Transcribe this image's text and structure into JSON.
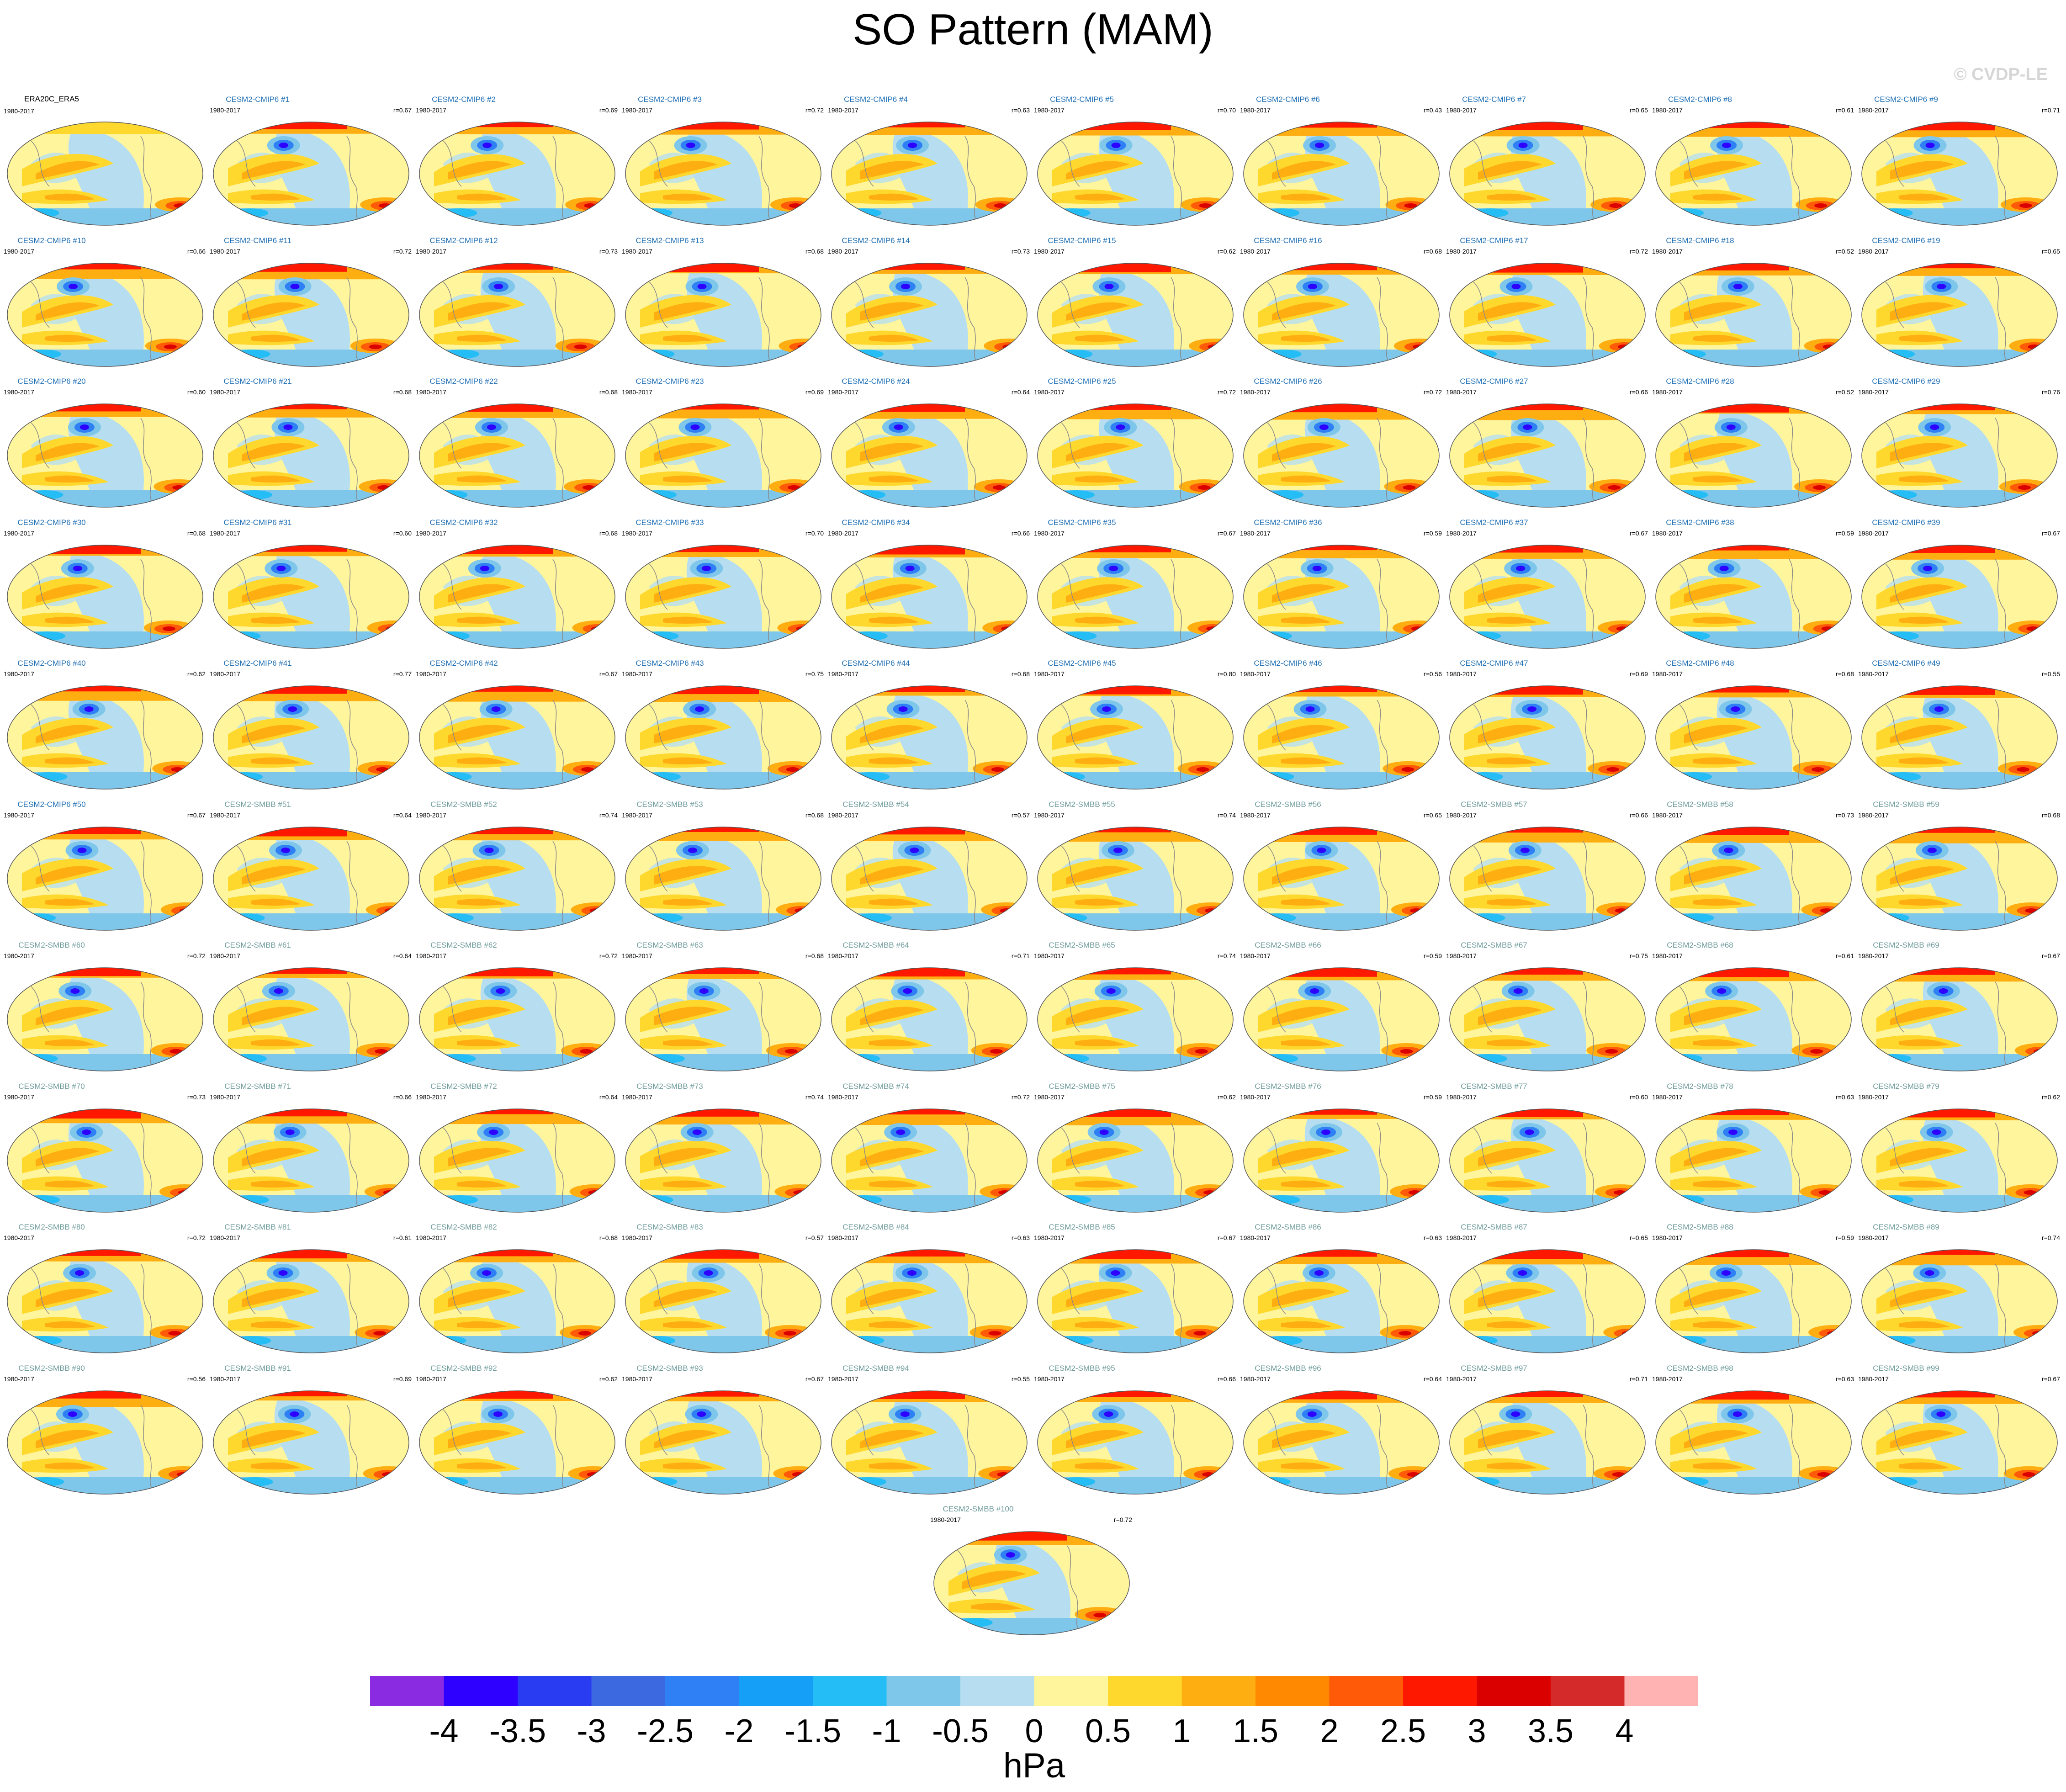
{
  "title": "SO Pattern (MAM)",
  "watermark": "© CVDP-LE",
  "chart_data": {
    "type": "heatmap",
    "description": "Global maps of sea level pressure pattern regressions, one per ensemble member",
    "panels": [
      {
        "title": "ERA20C_ERA5",
        "years": "1980-2017",
        "r": ""
      },
      {
        "title": "CESM2-CMIP6 #1",
        "years": "1980-2017",
        "r": "r=0.67"
      },
      {
        "title": "CESM2-CMIP6 #2",
        "years": "1980-2017",
        "r": "r=0.69"
      },
      {
        "title": "CESM2-CMIP6 #3",
        "years": "1980-2017",
        "r": "r=0.72"
      },
      {
        "title": "CESM2-CMIP6 #4",
        "years": "1980-2017",
        "r": "r=0.63"
      },
      {
        "title": "CESM2-CMIP6 #5",
        "years": "1980-2017",
        "r": "r=0.70"
      },
      {
        "title": "CESM2-CMIP6 #6",
        "years": "1980-2017",
        "r": "r=0.43"
      },
      {
        "title": "CESM2-CMIP6 #7",
        "years": "1980-2017",
        "r": "r=0.65"
      },
      {
        "title": "CESM2-CMIP6 #8",
        "years": "1980-2017",
        "r": "r=0.61"
      },
      {
        "title": "CESM2-CMIP6 #9",
        "years": "1980-2017",
        "r": "r=0.71"
      },
      {
        "title": "CESM2-CMIP6 #10",
        "years": "1980-2017",
        "r": "r=0.66"
      },
      {
        "title": "CESM2-CMIP6 #11",
        "years": "1980-2017",
        "r": "r=0.72"
      },
      {
        "title": "CESM2-CMIP6 #12",
        "years": "1980-2017",
        "r": "r=0.73"
      },
      {
        "title": "CESM2-CMIP6 #13",
        "years": "1980-2017",
        "r": "r=0.68"
      },
      {
        "title": "CESM2-CMIP6 #14",
        "years": "1980-2017",
        "r": "r=0.73"
      },
      {
        "title": "CESM2-CMIP6 #15",
        "years": "1980-2017",
        "r": "r=0.62"
      },
      {
        "title": "CESM2-CMIP6 #16",
        "years": "1980-2017",
        "r": "r=0.68"
      },
      {
        "title": "CESM2-CMIP6 #17",
        "years": "1980-2017",
        "r": "r=0.72"
      },
      {
        "title": "CESM2-CMIP6 #18",
        "years": "1980-2017",
        "r": "r=0.52"
      },
      {
        "title": "CESM2-CMIP6 #19",
        "years": "1980-2017",
        "r": "r=0.65"
      },
      {
        "title": "CESM2-CMIP6 #20",
        "years": "1980-2017",
        "r": "r=0.60"
      },
      {
        "title": "CESM2-CMIP6 #21",
        "years": "1980-2017",
        "r": "r=0.68"
      },
      {
        "title": "CESM2-CMIP6 #22",
        "years": "1980-2017",
        "r": "r=0.68"
      },
      {
        "title": "CESM2-CMIP6 #23",
        "years": "1980-2017",
        "r": "r=0.69"
      },
      {
        "title": "CESM2-CMIP6 #24",
        "years": "1980-2017",
        "r": "r=0.64"
      },
      {
        "title": "CESM2-CMIP6 #25",
        "years": "1980-2017",
        "r": "r=0.72"
      },
      {
        "title": "CESM2-CMIP6 #26",
        "years": "1980-2017",
        "r": "r=0.72"
      },
      {
        "title": "CESM2-CMIP6 #27",
        "years": "1980-2017",
        "r": "r=0.66"
      },
      {
        "title": "CESM2-CMIP6 #28",
        "years": "1980-2017",
        "r": "r=0.52"
      },
      {
        "title": "CESM2-CMIP6 #29",
        "years": "1980-2017",
        "r": "r=0.76"
      },
      {
        "title": "CESM2-CMIP6 #30",
        "years": "1980-2017",
        "r": "r=0.68"
      },
      {
        "title": "CESM2-CMIP6 #31",
        "years": "1980-2017",
        "r": "r=0.60"
      },
      {
        "title": "CESM2-CMIP6 #32",
        "years": "1980-2017",
        "r": "r=0.68"
      },
      {
        "title": "CESM2-CMIP6 #33",
        "years": "1980-2017",
        "r": "r=0.70"
      },
      {
        "title": "CESM2-CMIP6 #34",
        "years": "1980-2017",
        "r": "r=0.66"
      },
      {
        "title": "CESM2-CMIP6 #35",
        "years": "1980-2017",
        "r": "r=0.67"
      },
      {
        "title": "CESM2-CMIP6 #36",
        "years": "1980-2017",
        "r": "r=0.59"
      },
      {
        "title": "CESM2-CMIP6 #37",
        "years": "1980-2017",
        "r": "r=0.67"
      },
      {
        "title": "CESM2-CMIP6 #38",
        "years": "1980-2017",
        "r": "r=0.59"
      },
      {
        "title": "CESM2-CMIP6 #39",
        "years": "1980-2017",
        "r": "r=0.67"
      },
      {
        "title": "CESM2-CMIP6 #40",
        "years": "1980-2017",
        "r": "r=0.62"
      },
      {
        "title": "CESM2-CMIP6 #41",
        "years": "1980-2017",
        "r": "r=0.77"
      },
      {
        "title": "CESM2-CMIP6 #42",
        "years": "1980-2017",
        "r": "r=0.67"
      },
      {
        "title": "CESM2-CMIP6 #43",
        "years": "1980-2017",
        "r": "r=0.75"
      },
      {
        "title": "CESM2-CMIP6 #44",
        "years": "1980-2017",
        "r": "r=0.68"
      },
      {
        "title": "CESM2-CMIP6 #45",
        "years": "1980-2017",
        "r": "r=0.80"
      },
      {
        "title": "CESM2-CMIP6 #46",
        "years": "1980-2017",
        "r": "r=0.56"
      },
      {
        "title": "CESM2-CMIP6 #47",
        "years": "1980-2017",
        "r": "r=0.69"
      },
      {
        "title": "CESM2-CMIP6 #48",
        "years": "1980-2017",
        "r": "r=0.68"
      },
      {
        "title": "CESM2-CMIP6 #49",
        "years": "1980-2017",
        "r": "r=0.55"
      },
      {
        "title": "CESM2-CMIP6 #50",
        "years": "1980-2017",
        "r": "r=0.67"
      },
      {
        "title": "CESM2-SMBB #51",
        "years": "1980-2017",
        "r": "r=0.64"
      },
      {
        "title": "CESM2-SMBB #52",
        "years": "1980-2017",
        "r": "r=0.74"
      },
      {
        "title": "CESM2-SMBB #53",
        "years": "1980-2017",
        "r": "r=0.68"
      },
      {
        "title": "CESM2-SMBB #54",
        "years": "1980-2017",
        "r": "r=0.57"
      },
      {
        "title": "CESM2-SMBB #55",
        "years": "1980-2017",
        "r": "r=0.74"
      },
      {
        "title": "CESM2-SMBB #56",
        "years": "1980-2017",
        "r": "r=0.65"
      },
      {
        "title": "CESM2-SMBB #57",
        "years": "1980-2017",
        "r": "r=0.66"
      },
      {
        "title": "CESM2-SMBB #58",
        "years": "1980-2017",
        "r": "r=0.73"
      },
      {
        "title": "CESM2-SMBB #59",
        "years": "1980-2017",
        "r": "r=0.68"
      },
      {
        "title": "CESM2-SMBB #60",
        "years": "1980-2017",
        "r": "r=0.72"
      },
      {
        "title": "CESM2-SMBB #61",
        "years": "1980-2017",
        "r": "r=0.64"
      },
      {
        "title": "CESM2-SMBB #62",
        "years": "1980-2017",
        "r": "r=0.72"
      },
      {
        "title": "CESM2-SMBB #63",
        "years": "1980-2017",
        "r": "r=0.68"
      },
      {
        "title": "CESM2-SMBB #64",
        "years": "1980-2017",
        "r": "r=0.71"
      },
      {
        "title": "CESM2-SMBB #65",
        "years": "1980-2017",
        "r": "r=0.74"
      },
      {
        "title": "CESM2-SMBB #66",
        "years": "1980-2017",
        "r": "r=0.59"
      },
      {
        "title": "CESM2-SMBB #67",
        "years": "1980-2017",
        "r": "r=0.75"
      },
      {
        "title": "CESM2-SMBB #68",
        "years": "1980-2017",
        "r": "r=0.61"
      },
      {
        "title": "CESM2-SMBB #69",
        "years": "1980-2017",
        "r": "r=0.67"
      },
      {
        "title": "CESM2-SMBB #70",
        "years": "1980-2017",
        "r": "r=0.73"
      },
      {
        "title": "CESM2-SMBB #71",
        "years": "1980-2017",
        "r": "r=0.66"
      },
      {
        "title": "CESM2-SMBB #72",
        "years": "1980-2017",
        "r": "r=0.64"
      },
      {
        "title": "CESM2-SMBB #73",
        "years": "1980-2017",
        "r": "r=0.74"
      },
      {
        "title": "CESM2-SMBB #74",
        "years": "1980-2017",
        "r": "r=0.72"
      },
      {
        "title": "CESM2-SMBB #75",
        "years": "1980-2017",
        "r": "r=0.62"
      },
      {
        "title": "CESM2-SMBB #76",
        "years": "1980-2017",
        "r": "r=0.59"
      },
      {
        "title": "CESM2-SMBB #77",
        "years": "1980-2017",
        "r": "r=0.60"
      },
      {
        "title": "CESM2-SMBB #78",
        "years": "1980-2017",
        "r": "r=0.63"
      },
      {
        "title": "CESM2-SMBB #79",
        "years": "1980-2017",
        "r": "r=0.62"
      },
      {
        "title": "CESM2-SMBB #80",
        "years": "1980-2017",
        "r": "r=0.72"
      },
      {
        "title": "CESM2-SMBB #81",
        "years": "1980-2017",
        "r": "r=0.61"
      },
      {
        "title": "CESM2-SMBB #82",
        "years": "1980-2017",
        "r": "r=0.68"
      },
      {
        "title": "CESM2-SMBB #83",
        "years": "1980-2017",
        "r": "r=0.57"
      },
      {
        "title": "CESM2-SMBB #84",
        "years": "1980-2017",
        "r": "r=0.63"
      },
      {
        "title": "CESM2-SMBB #85",
        "years": "1980-2017",
        "r": "r=0.67"
      },
      {
        "title": "CESM2-SMBB #86",
        "years": "1980-2017",
        "r": "r=0.63"
      },
      {
        "title": "CESM2-SMBB #87",
        "years": "1980-2017",
        "r": "r=0.65"
      },
      {
        "title": "CESM2-SMBB #88",
        "years": "1980-2017",
        "r": "r=0.59"
      },
      {
        "title": "CESM2-SMBB #89",
        "years": "1980-2017",
        "r": "r=0.74"
      },
      {
        "title": "CESM2-SMBB #90",
        "years": "1980-2017",
        "r": "r=0.56"
      },
      {
        "title": "CESM2-SMBB #91",
        "years": "1980-2017",
        "r": "r=0.69"
      },
      {
        "title": "CESM2-SMBB #92",
        "years": "1980-2017",
        "r": "r=0.62"
      },
      {
        "title": "CESM2-SMBB #93",
        "years": "1980-2017",
        "r": "r=0.67"
      },
      {
        "title": "CESM2-SMBB #94",
        "years": "1980-2017",
        "r": "r=0.55"
      },
      {
        "title": "CESM2-SMBB #95",
        "years": "1980-2017",
        "r": "r=0.66"
      },
      {
        "title": "CESM2-SMBB #96",
        "years": "1980-2017",
        "r": "r=0.64"
      },
      {
        "title": "CESM2-SMBB #97",
        "years": "1980-2017",
        "r": "r=0.71"
      },
      {
        "title": "CESM2-SMBB #98",
        "years": "1980-2017",
        "r": "r=0.63"
      },
      {
        "title": "CESM2-SMBB #99",
        "years": "1980-2017",
        "r": "r=0.67"
      },
      {
        "title": "CESM2-SMBB #100",
        "years": "1980-2017",
        "r": "r=0.72"
      }
    ],
    "colorbar": {
      "label": "hPa",
      "ticks": [
        "-4",
        "-3.5",
        "-3",
        "-2.5",
        "-2",
        "-1.5",
        "-1",
        "-0.5",
        "0",
        "0.5",
        "1",
        "1.5",
        "2",
        "2.5",
        "3",
        "3.5",
        "4"
      ],
      "colors": [
        "#8a2be2",
        "#2d00ff",
        "#2a3cf2",
        "#3c68e0",
        "#2f80f4",
        "#159ff6",
        "#25bdf5",
        "#7ec6ea",
        "#b7def0",
        "#fff59d",
        "#ffd82e",
        "#ffae12",
        "#ff8900",
        "#ff5a08",
        "#fe1800",
        "#db0000",
        "#d42a2a",
        "#ffb3b3"
      ]
    },
    "title_colors": {
      "reference": "#000000",
      "CMIP6": "#1f6fb5",
      "SMBB": "#6e9a9a"
    }
  }
}
